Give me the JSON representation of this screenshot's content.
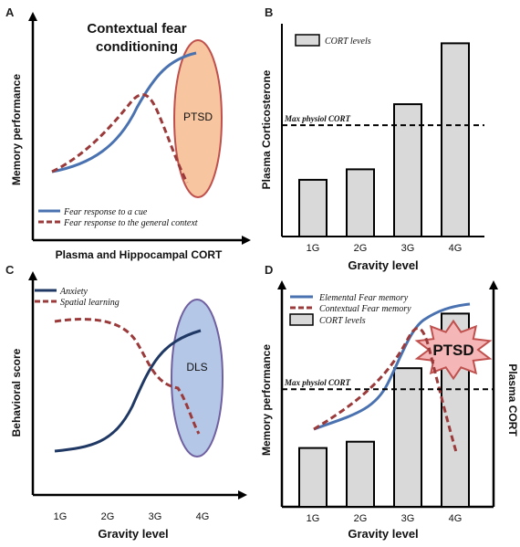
{
  "panels": {
    "A": {
      "letter": "A",
      "title_lines": [
        "Contextual fear",
        "conditioning"
      ],
      "ylabel": "Memory performance",
      "xlabel": "Plasma and Hippocampal CORT",
      "ellipse_label": "PTSD",
      "legend": [
        "Fear response to a cue",
        "Fear response to the general context"
      ],
      "colors": {
        "cue": "#4a72b0",
        "context": "#9b3a3a",
        "ellipse_fill": "#f7c59f",
        "ellipse_stroke": "#c0504d"
      }
    },
    "B": {
      "letter": "B",
      "legend": "CORT levels",
      "ylabel": "Plasma Corticosterone",
      "xlabel": "Gravity level",
      "reference_label": "Max physiol CORT",
      "colors": {
        "bar_fill": "#d9d9d9",
        "bar_stroke": "#000000"
      }
    },
    "C": {
      "letter": "C",
      "ylabel": "Behavioral score",
      "xlabel": "Gravity level",
      "categories": [
        "1G",
        "2G",
        "3G",
        "4G"
      ],
      "ellipse_label": "DLS",
      "legend": [
        "Anxiety",
        "Spatial learning"
      ],
      "colors": {
        "anxiety": "#1f3864",
        "spatial": "#9b3a3a",
        "ellipse_fill": "#b4c7e7",
        "ellipse_stroke": "#7060a0"
      }
    },
    "D": {
      "letter": "D",
      "ylabel": "Memory performance",
      "ylabel_right": "Plasma CORT",
      "xlabel": "Gravity level",
      "legend": [
        "Elemental Fear memory",
        "Contextual Fear memory",
        "CORT levels"
      ],
      "reference_label": "Max physiol CORT",
      "star_label": "PTSD",
      "colors": {
        "elemental": "#4a72b0",
        "contextual": "#9b3a3a",
        "bar_fill": "#d9d9d9",
        "star_fill": "#f4b6b6",
        "star_stroke": "#c0504d"
      }
    }
  },
  "chart_data": [
    {
      "panel": "B",
      "type": "bar",
      "categories": [
        "1G",
        "2G",
        "3G",
        "4G"
      ],
      "series": [
        {
          "name": "CORT levels",
          "values": [
            0.27,
            0.32,
            0.63,
            0.92
          ]
        }
      ],
      "reference_line": {
        "label": "Max physiol CORT",
        "value": 0.53
      },
      "xlabel": "Gravity level",
      "ylabel": "Plasma Corticosterone",
      "ylim": [
        0,
        1
      ]
    },
    {
      "panel": "D",
      "type": "bar",
      "categories": [
        "1G",
        "2G",
        "3G",
        "4G"
      ],
      "series": [
        {
          "name": "CORT levels",
          "values": [
            0.28,
            0.31,
            0.66,
            0.92
          ]
        }
      ],
      "reference_line": {
        "label": "Max physiol CORT",
        "value": 0.56
      },
      "xlabel": "Gravity level",
      "ylim": [
        0,
        1
      ]
    }
  ]
}
